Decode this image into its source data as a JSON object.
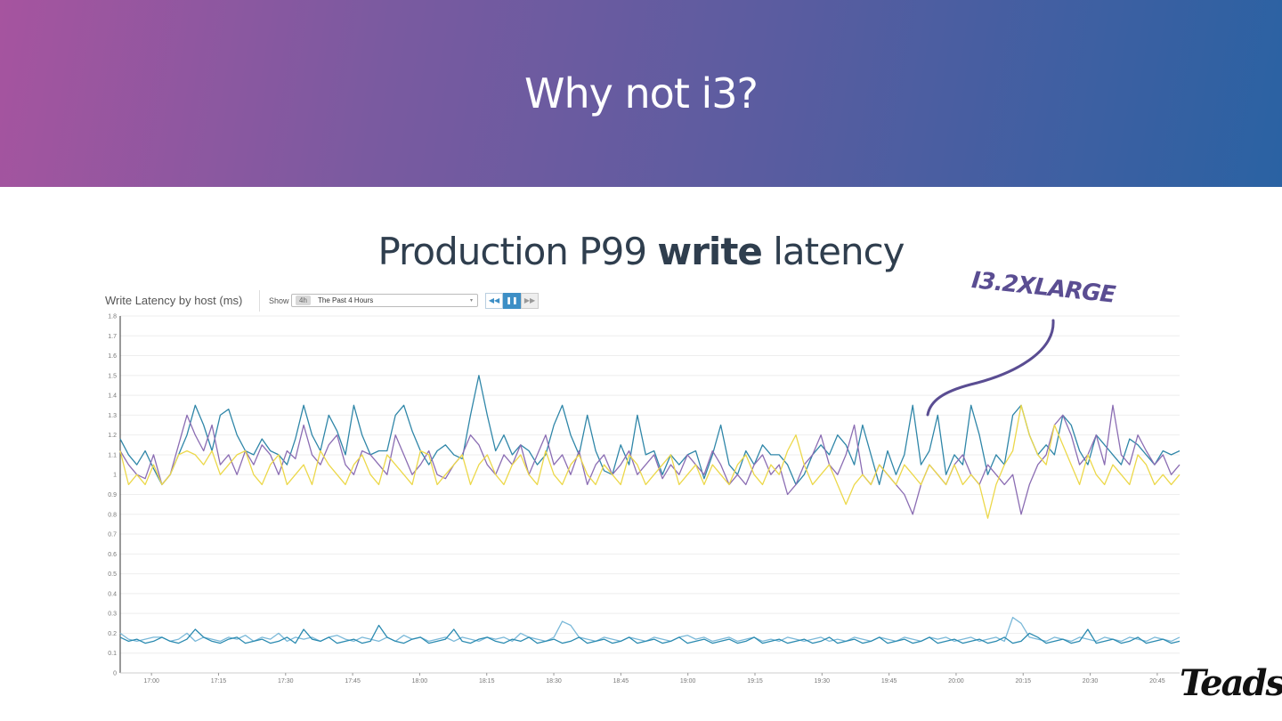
{
  "slide": {
    "title": "Why not i3?",
    "subtitle_pre": "Production P99 ",
    "subtitle_bold": "write",
    "subtitle_post": " latency",
    "annotation": "I3.2XLARGE",
    "logo": "Teads"
  },
  "panel": {
    "title": "Write Latency by host (ms)",
    "show_label": "Show",
    "timeframe_badge": "4h",
    "timeframe_label": "The Past 4 Hours",
    "caret": "▾",
    "btn_back": "◀◀",
    "btn_pause": "❚❚",
    "btn_forward": "▶▶"
  },
  "colors": {
    "banner_start": "#a6549f",
    "banner_end": "#2a62a3",
    "series": [
      "#2f86a8",
      "#8b6db3",
      "#ecd84a",
      "#7ab8d8",
      "#2a8ab0"
    ],
    "annotation": "#5a4d92"
  },
  "chart_data": {
    "type": "line",
    "title": "Write Latency by host (ms)",
    "xlabel": "",
    "ylabel": "",
    "ylim": [
      0,
      1.8
    ],
    "y_ticks": [
      "0",
      "0.1",
      "0.2",
      "0.3",
      "0.4",
      "0.5",
      "0.6",
      "0.7",
      "0.8",
      "0.9",
      "1",
      "1.1",
      "1.2",
      "1.3",
      "1.4",
      "1.5",
      "1.6",
      "1.7",
      "1.8"
    ],
    "x_ticks": [
      "17:00",
      "17:15",
      "17:30",
      "17:45",
      "18:00",
      "18:15",
      "18:30",
      "18:45",
      "19:00",
      "19:15",
      "19:30",
      "19:45",
      "20:00",
      "20:15",
      "20:30",
      "20:45"
    ],
    "x_range": [
      "16:53",
      "20:50"
    ],
    "grid": true,
    "series": [
      {
        "values": [
          1.18,
          1.1,
          1.05,
          1.12,
          1.03,
          0.95,
          1.0,
          1.1,
          1.2,
          1.35,
          1.25,
          1.12,
          1.3,
          1.33,
          1.2,
          1.12,
          1.1,
          1.18,
          1.12,
          1.1,
          1.05,
          1.18,
          1.35,
          1.2,
          1.12,
          1.3,
          1.22,
          1.1,
          1.35,
          1.2,
          1.1,
          1.12,
          1.12,
          1.3,
          1.35,
          1.22,
          1.12,
          1.05,
          1.12,
          1.15,
          1.1,
          1.08,
          1.3,
          1.5,
          1.3,
          1.12,
          1.2,
          1.1,
          1.15,
          1.12,
          1.05,
          1.1,
          1.25,
          1.35,
          1.2,
          1.1,
          1.3,
          1.12,
          1.02,
          1.0,
          1.15,
          1.05,
          1.3,
          1.1,
          1.12,
          1.0,
          1.1,
          1.05,
          1.1,
          1.12,
          0.98,
          1.1,
          1.25,
          1.05,
          1.0,
          1.12,
          1.05,
          1.15,
          1.1,
          1.1,
          1.05,
          0.95,
          1.0,
          1.1,
          1.15,
          1.1,
          1.2,
          1.15,
          1.05,
          1.25,
          1.1,
          0.95,
          1.12,
          1.0,
          1.1,
          1.35,
          1.05,
          1.12,
          1.3,
          1.0,
          1.1,
          1.05,
          1.35,
          1.2,
          1.0,
          1.1,
          1.05,
          1.3,
          1.35,
          1.2,
          1.1,
          1.15,
          1.1,
          1.3,
          1.25,
          1.12,
          1.05,
          1.2,
          1.15,
          1.1,
          1.05,
          1.18,
          1.15,
          1.1,
          1.05,
          1.12,
          1.1,
          1.12
        ],
        "y_visible_range": [
          0.9,
          1.5
        ]
      },
      {
        "values": [
          1.12,
          1.05,
          1.0,
          0.98,
          1.1,
          0.95,
          1.0,
          1.15,
          1.3,
          1.2,
          1.12,
          1.25,
          1.05,
          1.1,
          1.0,
          1.12,
          1.05,
          1.15,
          1.1,
          1.0,
          1.12,
          1.08,
          1.25,
          1.1,
          1.05,
          1.15,
          1.2,
          1.05,
          1.0,
          1.12,
          1.1,
          1.05,
          1.0,
          1.2,
          1.1,
          1.0,
          1.05,
          1.12,
          1.0,
          0.98,
          1.05,
          1.1,
          1.2,
          1.15,
          1.05,
          1.0,
          1.1,
          1.05,
          1.15,
          1.0,
          1.1,
          1.2,
          1.05,
          1.1,
          1.0,
          1.12,
          0.95,
          1.05,
          1.1,
          1.0,
          1.05,
          1.12,
          1.0,
          1.05,
          1.1,
          0.98,
          1.05,
          1.0,
          1.1,
          1.05,
          1.0,
          1.12,
          1.05,
          0.95,
          1.0,
          0.95,
          1.05,
          1.1,
          1.0,
          1.05,
          0.9,
          0.95,
          1.05,
          1.1,
          1.2,
          1.05,
          1.0,
          1.1,
          1.25,
          1.0,
          0.95,
          1.05,
          1.0,
          0.95,
          0.9,
          0.8,
          0.95,
          1.05,
          1.0,
          0.95,
          1.05,
          1.1,
          1.0,
          0.95,
          1.05,
          1.0,
          0.95,
          1.0,
          0.8,
          0.95,
          1.05,
          1.1,
          1.25,
          1.3,
          1.2,
          1.05,
          1.1,
          1.2,
          1.05,
          1.35,
          1.1,
          1.05,
          1.2,
          1.12,
          1.05,
          1.1,
          1.0,
          1.05
        ],
        "y_visible_range": [
          0.78,
          1.35
        ]
      },
      {
        "values": [
          1.12,
          0.95,
          1.0,
          0.95,
          1.05,
          0.95,
          1.0,
          1.1,
          1.12,
          1.1,
          1.05,
          1.12,
          1.0,
          1.05,
          1.1,
          1.12,
          1.0,
          0.95,
          1.05,
          1.1,
          0.95,
          1.0,
          1.05,
          0.95,
          1.12,
          1.05,
          1.0,
          0.95,
          1.05,
          1.1,
          1.0,
          0.95,
          1.1,
          1.05,
          1.0,
          0.95,
          1.12,
          1.1,
          0.95,
          1.0,
          1.05,
          1.1,
          0.95,
          1.05,
          1.1,
          1.0,
          0.95,
          1.05,
          1.1,
          1.0,
          0.95,
          1.12,
          1.0,
          0.95,
          1.05,
          1.1,
          1.0,
          0.95,
          1.05,
          1.0,
          0.95,
          1.1,
          1.05,
          0.95,
          1.0,
          1.05,
          1.1,
          0.95,
          1.0,
          1.05,
          0.95,
          1.05,
          1.0,
          0.95,
          1.05,
          1.1,
          1.0,
          0.95,
          1.05,
          1.0,
          1.12,
          1.2,
          1.05,
          0.95,
          1.0,
          1.05,
          0.95,
          0.85,
          0.95,
          1.0,
          0.95,
          1.05,
          1.0,
          0.95,
          1.05,
          1.0,
          0.95,
          1.05,
          1.0,
          0.95,
          1.05,
          0.95,
          1.0,
          0.95,
          0.78,
          0.95,
          1.05,
          1.12,
          1.35,
          1.2,
          1.1,
          1.05,
          1.25,
          1.15,
          1.05,
          0.95,
          1.1,
          1.0,
          0.95,
          1.05,
          1.0,
          0.95,
          1.1,
          1.05,
          0.95,
          1.0,
          0.95,
          1.0
        ],
        "y_visible_range": [
          0.78,
          1.35
        ]
      },
      {
        "values": [
          0.2,
          0.17,
          0.16,
          0.17,
          0.18,
          0.18,
          0.16,
          0.17,
          0.2,
          0.16,
          0.18,
          0.17,
          0.16,
          0.18,
          0.17,
          0.19,
          0.16,
          0.18,
          0.17,
          0.2,
          0.16,
          0.18,
          0.17,
          0.18,
          0.16,
          0.18,
          0.19,
          0.17,
          0.16,
          0.18,
          0.17,
          0.16,
          0.18,
          0.16,
          0.19,
          0.17,
          0.18,
          0.16,
          0.17,
          0.18,
          0.16,
          0.18,
          0.17,
          0.16,
          0.18,
          0.17,
          0.18,
          0.16,
          0.2,
          0.18,
          0.17,
          0.16,
          0.18,
          0.26,
          0.24,
          0.18,
          0.17,
          0.16,
          0.18,
          0.17,
          0.16,
          0.18,
          0.17,
          0.16,
          0.18,
          0.17,
          0.16,
          0.18,
          0.19,
          0.17,
          0.18,
          0.16,
          0.17,
          0.18,
          0.16,
          0.17,
          0.18,
          0.16,
          0.17,
          0.16,
          0.18,
          0.17,
          0.16,
          0.17,
          0.18,
          0.16,
          0.17,
          0.16,
          0.18,
          0.17,
          0.16,
          0.18,
          0.17,
          0.16,
          0.18,
          0.17,
          0.16,
          0.18,
          0.17,
          0.18,
          0.16,
          0.17,
          0.18,
          0.16,
          0.17,
          0.18,
          0.16,
          0.28,
          0.25,
          0.18,
          0.17,
          0.16,
          0.18,
          0.17,
          0.16,
          0.18,
          0.17,
          0.16,
          0.18,
          0.17,
          0.16,
          0.18,
          0.17,
          0.16,
          0.18,
          0.17,
          0.16,
          0.18
        ],
        "y_visible_range": [
          0.15,
          0.28
        ]
      },
      {
        "values": [
          0.18,
          0.16,
          0.17,
          0.15,
          0.16,
          0.18,
          0.16,
          0.15,
          0.17,
          0.22,
          0.18,
          0.16,
          0.15,
          0.17,
          0.18,
          0.15,
          0.16,
          0.17,
          0.15,
          0.16,
          0.18,
          0.15,
          0.22,
          0.17,
          0.16,
          0.18,
          0.15,
          0.16,
          0.17,
          0.15,
          0.16,
          0.24,
          0.18,
          0.16,
          0.15,
          0.17,
          0.18,
          0.15,
          0.16,
          0.17,
          0.22,
          0.16,
          0.15,
          0.17,
          0.18,
          0.16,
          0.15,
          0.17,
          0.16,
          0.18,
          0.15,
          0.16,
          0.17,
          0.15,
          0.16,
          0.18,
          0.15,
          0.16,
          0.17,
          0.15,
          0.16,
          0.18,
          0.15,
          0.16,
          0.17,
          0.15,
          0.16,
          0.18,
          0.15,
          0.16,
          0.17,
          0.15,
          0.16,
          0.17,
          0.15,
          0.16,
          0.18,
          0.15,
          0.16,
          0.17,
          0.15,
          0.16,
          0.17,
          0.15,
          0.16,
          0.18,
          0.15,
          0.16,
          0.17,
          0.15,
          0.16,
          0.18,
          0.15,
          0.16,
          0.17,
          0.15,
          0.16,
          0.18,
          0.15,
          0.16,
          0.17,
          0.15,
          0.16,
          0.17,
          0.15,
          0.16,
          0.18,
          0.15,
          0.16,
          0.2,
          0.18,
          0.15,
          0.16,
          0.17,
          0.15,
          0.16,
          0.22,
          0.15,
          0.16,
          0.17,
          0.15,
          0.16,
          0.18,
          0.15,
          0.16,
          0.17,
          0.15,
          0.16
        ],
        "y_visible_range": [
          0.15,
          0.24
        ]
      }
    ]
  }
}
